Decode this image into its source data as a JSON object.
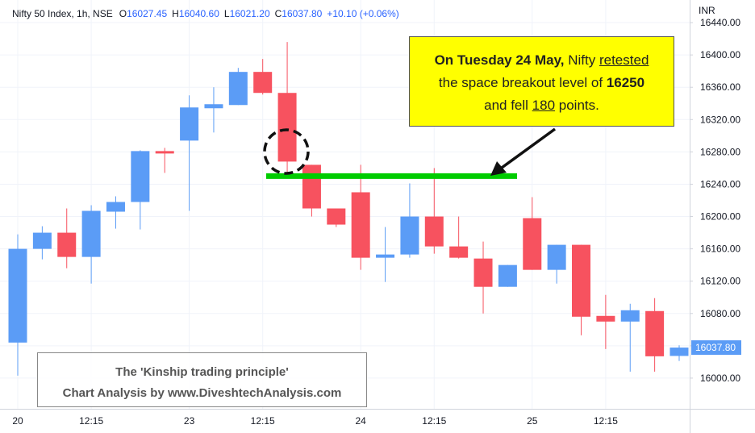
{
  "chart_data": {
    "type": "candlestick",
    "header": {
      "symbol": "Nifty 50 Index, 1h, NSE",
      "ohlc": [
        {
          "label": "O",
          "value": "16027.45"
        },
        {
          "label": "H",
          "value": "16040.60"
        },
        {
          "label": "L",
          "value": "16021.20"
        },
        {
          "label": "C",
          "value": "16037.80"
        }
      ],
      "change": "+10.10 (+0.06%)"
    },
    "currency": "INR",
    "categories": [
      "20",
      null,
      null,
      "12:15",
      null,
      null,
      null,
      "23",
      null,
      null,
      "12:15",
      null,
      null,
      null,
      "24",
      null,
      null,
      "12:15",
      null,
      null,
      null,
      "25",
      null,
      null,
      "12:15",
      null,
      null,
      null
    ],
    "open": [
      16044,
      16160,
      16180,
      16150,
      16206,
      16218,
      16281,
      16294,
      16334,
      16338,
      16379,
      16353,
      16264,
      16210,
      16230,
      16149,
      16153,
      16200,
      16163,
      16148,
      16113,
      16198,
      16134,
      16165,
      16077,
      16070,
      16083,
      16027.45
    ],
    "high": [
      16178,
      16188,
      16210,
      16214,
      16225,
      16282,
      16285,
      16350,
      16360,
      16384,
      16395,
      16416,
      16264,
      16210,
      16264,
      16187,
      16241,
      16260,
      16200,
      16169,
      16140,
      16224,
      16165,
      16165,
      16103,
      16092,
      16099,
      16040.6
    ],
    "low": [
      16003,
      16147,
      16136,
      16117,
      16185,
      16184,
      16254,
      16207,
      16304,
      16338,
      16351,
      16255,
      16200,
      16187,
      16134,
      16119,
      16149,
      16154,
      16148,
      16080,
      16113,
      16134,
      16117,
      16053,
      16036,
      16008,
      16008,
      16021.2
    ],
    "close": [
      16160,
      16180,
      16150,
      16207,
      16218,
      16281,
      16278,
      16335,
      16339,
      16379,
      16353,
      16268,
      16210,
      16190,
      16149,
      16153,
      16200,
      16163,
      16149,
      16113,
      16140,
      16134,
      16165,
      16076,
      16070,
      16084,
      16027,
      16037.8
    ],
    "up_color": "#5b9cf6",
    "down_color": "#f7525f",
    "ylim": [
      15962,
      16468
    ],
    "yticks": [
      {
        "value": 16000,
        "label": "16000.00"
      },
      {
        "value": 16040,
        "label": "16040.00"
      },
      {
        "value": 16080,
        "label": "16080.00"
      },
      {
        "value": 16120,
        "label": "16120.00"
      },
      {
        "value": 16160,
        "label": "16160.00"
      },
      {
        "value": 16200,
        "label": "16200.00"
      },
      {
        "value": 16240,
        "label": "16240.00"
      },
      {
        "value": 16280,
        "label": "16280.00"
      },
      {
        "value": 16320,
        "label": "16320.00"
      },
      {
        "value": 16360,
        "label": "16360.00"
      },
      {
        "value": 16400,
        "label": "16400.00"
      },
      {
        "value": 16440,
        "label": "16440.00"
      }
    ],
    "last_price": {
      "value": 16037.8,
      "label": "16037.80"
    },
    "level": {
      "value": 16250,
      "color": "#00cc00"
    },
    "annotation": {
      "lines": [
        [
          "On Tuesday 24 May,",
          " Nifty ",
          "retested"
        ],
        [
          "the space breakout level of ",
          "16250"
        ],
        [
          "and fell ",
          "180",
          " points."
        ]
      ]
    },
    "watermark": [
      "The 'Kinship trading principle'",
      "Chart Analysis by www.DiveshtechAnalysis.com"
    ],
    "grid": true
  }
}
